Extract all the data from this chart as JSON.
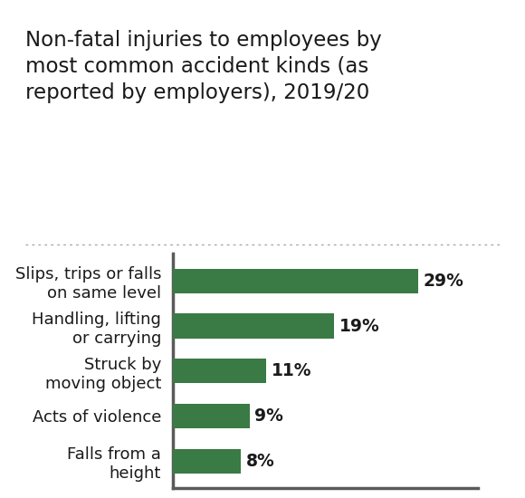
{
  "title": "Non-fatal injuries to employees by\nmost common accident kinds (as\nreported by employers), 2019/20",
  "categories": [
    "Slips, trips or falls\non same level",
    "Handling, lifting\nor carrying",
    "Struck by\nmoving object",
    "Acts of violence",
    "Falls from a\nheight"
  ],
  "values": [
    29,
    19,
    11,
    9,
    8
  ],
  "bar_color": "#3a7a45",
  "label_color": "#1a1a1a",
  "value_color": "#1a1a1a",
  "title_color": "#1a1a1a",
  "background_color": "#ffffff",
  "axis_color": "#5a5a5a",
  "dotted_line_color": "#aaaaaa",
  "title_fontsize": 16.5,
  "label_fontsize": 13.0,
  "value_fontsize": 13.5,
  "xlim": [
    0,
    36
  ]
}
